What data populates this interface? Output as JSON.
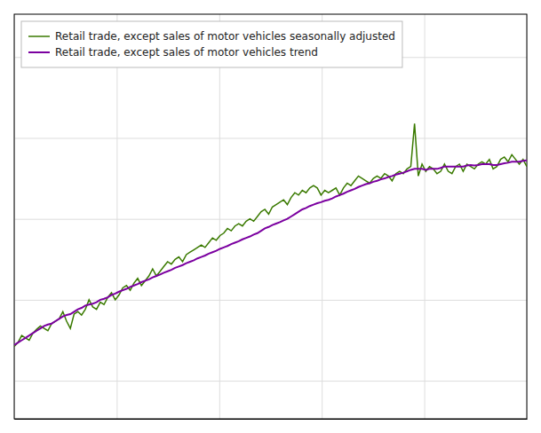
{
  "chart_data": {
    "type": "line",
    "x": [
      0,
      1,
      2,
      3,
      4,
      5,
      6,
      7,
      8,
      9,
      10,
      11,
      12,
      13,
      14,
      15,
      16,
      17,
      18,
      19,
      20,
      21,
      22,
      23,
      24,
      25,
      26,
      27,
      28,
      29,
      30,
      31,
      32,
      33,
      34,
      35,
      36,
      37,
      38,
      39,
      40,
      41,
      42,
      43,
      44,
      45,
      46,
      47,
      48,
      49,
      50,
      51,
      52,
      53,
      54,
      55,
      56,
      57,
      58,
      59,
      60,
      61,
      62,
      63,
      64,
      65,
      66,
      67,
      68,
      69,
      70,
      71,
      72,
      73,
      74,
      75,
      76,
      77,
      78,
      79,
      80,
      81,
      82,
      83,
      84,
      85,
      86,
      87,
      88,
      89,
      90,
      91,
      92,
      93,
      94,
      95,
      96,
      97,
      98,
      99,
      100,
      101,
      102,
      103,
      104,
      105,
      106,
      107,
      108,
      109,
      110,
      111,
      112,
      113,
      114,
      115,
      116,
      117,
      118,
      119,
      120,
      121,
      122,
      123,
      124,
      125,
      126,
      127,
      128,
      129,
      130,
      131,
      132,
      133,
      134,
      135,
      136,
      137
    ],
    "series": [
      {
        "name": "Retail trade, except sales of motor vehicles seasonally adjusted",
        "color": "#3a7a00",
        "values": [
          75.2,
          76.0,
          77.5,
          77.0,
          76.5,
          78.0,
          78.8,
          79.5,
          79.0,
          78.5,
          80.0,
          80.5,
          81.0,
          82.5,
          80.5,
          79.0,
          82.0,
          82.5,
          81.8,
          83.0,
          85.0,
          83.5,
          83.0,
          84.5,
          84.0,
          85.5,
          86.5,
          85.0,
          86.0,
          87.5,
          88.0,
          87.0,
          88.5,
          89.5,
          88.0,
          89.0,
          90.0,
          91.5,
          90.0,
          91.0,
          92.0,
          93.0,
          92.5,
          93.5,
          94.0,
          93.0,
          94.5,
          95.0,
          95.5,
          96.0,
          96.5,
          96.0,
          97.0,
          98.0,
          97.5,
          98.5,
          99.0,
          100.0,
          99.5,
          100.5,
          101.0,
          100.5,
          101.5,
          102.0,
          101.5,
          102.5,
          103.5,
          104.0,
          103.0,
          104.5,
          105.0,
          105.5,
          106.0,
          105.0,
          106.5,
          107.5,
          107.0,
          108.0,
          107.5,
          108.5,
          109.0,
          108.5,
          107.0,
          108.0,
          107.5,
          108.0,
          108.5,
          107.0,
          108.5,
          109.5,
          109.0,
          110.0,
          111.0,
          110.5,
          110.0,
          109.5,
          110.5,
          111.0,
          110.5,
          111.5,
          111.0,
          110.0,
          111.5,
          112.0,
          111.5,
          112.5,
          113.0,
          122.0,
          111.0,
          113.5,
          112.0,
          113.0,
          112.5,
          111.5,
          112.0,
          113.5,
          112.0,
          111.5,
          113.0,
          113.5,
          112.0,
          113.5,
          113.0,
          112.5,
          113.5,
          114.0,
          113.5,
          114.5,
          112.5,
          113.0,
          114.5,
          115.0,
          114.0,
          115.5,
          114.5,
          113.5,
          114.5,
          113.0
        ]
      },
      {
        "name": "Retail trade, except sales of motor vehicles trend",
        "color": "#7b00a0",
        "values": [
          75.5,
          76.0,
          76.5,
          77.0,
          77.5,
          78.0,
          78.5,
          79.0,
          79.5,
          79.8,
          80.0,
          80.5,
          81.0,
          81.5,
          81.8,
          82.0,
          82.5,
          83.0,
          83.3,
          83.8,
          84.0,
          84.2,
          84.5,
          85.0,
          85.2,
          85.5,
          86.0,
          86.3,
          86.7,
          87.0,
          87.3,
          87.7,
          88.0,
          88.3,
          88.7,
          89.0,
          89.3,
          89.7,
          90.0,
          90.3,
          90.7,
          91.0,
          91.3,
          91.7,
          92.0,
          92.3,
          92.7,
          93.0,
          93.3,
          93.7,
          94.0,
          94.3,
          94.7,
          95.0,
          95.3,
          95.7,
          96.0,
          96.3,
          96.7,
          97.0,
          97.3,
          97.7,
          98.0,
          98.3,
          98.7,
          99.0,
          99.5,
          100.0,
          100.3,
          100.7,
          101.0,
          101.3,
          101.7,
          102.0,
          102.5,
          103.0,
          103.5,
          104.0,
          104.3,
          104.7,
          105.0,
          105.3,
          105.5,
          105.8,
          106.0,
          106.3,
          106.7,
          107.0,
          107.3,
          107.7,
          108.0,
          108.3,
          108.7,
          109.0,
          109.3,
          109.5,
          109.8,
          110.0,
          110.3,
          110.5,
          110.8,
          111.0,
          111.3,
          111.5,
          111.7,
          112.0,
          112.3,
          112.5,
          112.5,
          112.5,
          112.3,
          112.5,
          112.5,
          112.5,
          112.7,
          113.0,
          113.0,
          113.0,
          113.0,
          113.0,
          113.0,
          113.2,
          113.3,
          113.2,
          113.3,
          113.5,
          113.5,
          113.5,
          113.3,
          113.3,
          113.5,
          113.7,
          113.8,
          114.0,
          114.0,
          114.0,
          114.2,
          114.3
        ]
      }
    ],
    "xlim": [
      0,
      137
    ],
    "xticks": [
      0,
      27.4,
      54.8,
      82.2,
      109.6,
      137
    ],
    "ylim": [
      60,
      145
    ],
    "yticks": [
      68,
      85,
      102,
      119,
      136
    ],
    "grid": true,
    "tick_labels": false,
    "legend": "top-left"
  }
}
